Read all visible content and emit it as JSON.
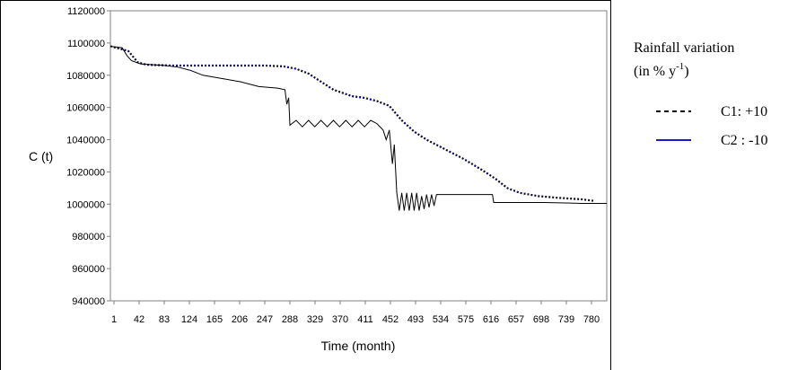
{
  "chart_data": {
    "type": "line",
    "xlabel": "Time (month)",
    "ylabel": "C (t)",
    "ylim": [
      940000,
      1120000
    ],
    "yticks": [
      "1120000",
      "1100000",
      "1080000",
      "1060000",
      "1040000",
      "1020000",
      "1000000",
      "980000",
      "960000",
      "940000"
    ],
    "xticks": [
      "1",
      "42",
      "83",
      "124",
      "165",
      "206",
      "247",
      "288",
      "329",
      "370",
      "411",
      "452",
      "493",
      "534",
      "575",
      "616",
      "657",
      "698",
      "739",
      "780"
    ],
    "xlim": [
      1,
      800
    ],
    "grid": false,
    "legend": {
      "title_line1": "Rainfall variation",
      "title_line2_prefix": "(in % y",
      "title_line2_sup": "-1",
      "title_line2_suffix": ")",
      "placement": "right"
    },
    "series": [
      {
        "name": "C1: +10",
        "style": "dashed",
        "color": "#000000",
        "points": [
          [
            1,
            1098000
          ],
          [
            30,
            1095000
          ],
          [
            45,
            1088000
          ],
          [
            60,
            1086500
          ],
          [
            100,
            1086000
          ],
          [
            150,
            1086000
          ],
          [
            200,
            1086000
          ],
          [
            250,
            1086000
          ],
          [
            280,
            1085500
          ],
          [
            300,
            1084000
          ],
          [
            320,
            1081000
          ],
          [
            340,
            1076000
          ],
          [
            360,
            1071000
          ],
          [
            390,
            1067000
          ],
          [
            410,
            1066000
          ],
          [
            430,
            1064000
          ],
          [
            450,
            1061000
          ],
          [
            470,
            1052000
          ],
          [
            490,
            1045000
          ],
          [
            510,
            1040000
          ],
          [
            540,
            1034000
          ],
          [
            570,
            1028000
          ],
          [
            600,
            1021000
          ],
          [
            620,
            1016000
          ],
          [
            640,
            1010000
          ],
          [
            660,
            1007000
          ],
          [
            690,
            1005000
          ],
          [
            720,
            1004000
          ],
          [
            760,
            1003000
          ],
          [
            780,
            1002000
          ]
        ]
      },
      {
        "name": "C2 : -10",
        "style": "solid",
        "color": "#1a1ad4",
        "points": [
          [
            1,
            1098000
          ],
          [
            30,
            1095000
          ],
          [
            45,
            1088000
          ],
          [
            60,
            1086500
          ],
          [
            100,
            1086000
          ],
          [
            150,
            1086000
          ],
          [
            200,
            1086000
          ],
          [
            250,
            1086000
          ],
          [
            280,
            1085500
          ],
          [
            300,
            1084000
          ],
          [
            320,
            1081000
          ],
          [
            340,
            1076000
          ],
          [
            360,
            1071000
          ],
          [
            390,
            1067000
          ],
          [
            410,
            1066000
          ],
          [
            430,
            1064000
          ],
          [
            450,
            1061000
          ],
          [
            470,
            1052000
          ],
          [
            490,
            1045000
          ],
          [
            510,
            1040000
          ],
          [
            540,
            1034000
          ],
          [
            570,
            1028000
          ],
          [
            600,
            1021000
          ],
          [
            620,
            1016000
          ],
          [
            640,
            1010000
          ],
          [
            660,
            1007000
          ],
          [
            690,
            1005000
          ],
          [
            720,
            1004000
          ],
          [
            760,
            1003000
          ],
          [
            780,
            1002000
          ]
        ]
      },
      {
        "name": "",
        "style": "thin-solid",
        "color": "#000000",
        "points": [
          [
            1,
            1098000
          ],
          [
            20,
            1097000
          ],
          [
            28,
            1092000
          ],
          [
            35,
            1089000
          ],
          [
            50,
            1087000
          ],
          [
            90,
            1086000
          ],
          [
            110,
            1085000
          ],
          [
            130,
            1083000
          ],
          [
            150,
            1080000
          ],
          [
            180,
            1078000
          ],
          [
            210,
            1076000
          ],
          [
            240,
            1073000
          ],
          [
            270,
            1072000
          ],
          [
            282,
            1071000
          ],
          [
            285,
            1062000
          ],
          [
            288,
            1066000
          ],
          [
            290,
            1049000
          ],
          [
            300,
            1052000
          ],
          [
            310,
            1048000
          ],
          [
            320,
            1052000
          ],
          [
            330,
            1048000
          ],
          [
            340,
            1052000
          ],
          [
            350,
            1048000
          ],
          [
            360,
            1052000
          ],
          [
            370,
            1048000
          ],
          [
            380,
            1052000
          ],
          [
            390,
            1048000
          ],
          [
            400,
            1052000
          ],
          [
            410,
            1048000
          ],
          [
            420,
            1052000
          ],
          [
            430,
            1050000
          ],
          [
            440,
            1046000
          ],
          [
            445,
            1040000
          ],
          [
            450,
            1046000
          ],
          [
            455,
            1025000
          ],
          [
            458,
            1037000
          ],
          [
            462,
            1007000
          ],
          [
            466,
            996000
          ],
          [
            470,
            1007000
          ],
          [
            474,
            996000
          ],
          [
            478,
            1007000
          ],
          [
            482,
            996000
          ],
          [
            486,
            1007000
          ],
          [
            490,
            996000
          ],
          [
            494,
            1007000
          ],
          [
            498,
            996000
          ],
          [
            502,
            1005000
          ],
          [
            506,
            997000
          ],
          [
            510,
            1006000
          ],
          [
            514,
            998000
          ],
          [
            518,
            1006000
          ],
          [
            522,
            999000
          ],
          [
            526,
            1006000
          ],
          [
            540,
            1006000
          ],
          [
            560,
            1006000
          ],
          [
            600,
            1006000
          ],
          [
            616,
            1006000
          ],
          [
            618,
            1001000
          ],
          [
            640,
            1001000
          ],
          [
            700,
            1001000
          ],
          [
            760,
            1000500
          ],
          [
            800,
            1000500
          ]
        ]
      }
    ]
  }
}
